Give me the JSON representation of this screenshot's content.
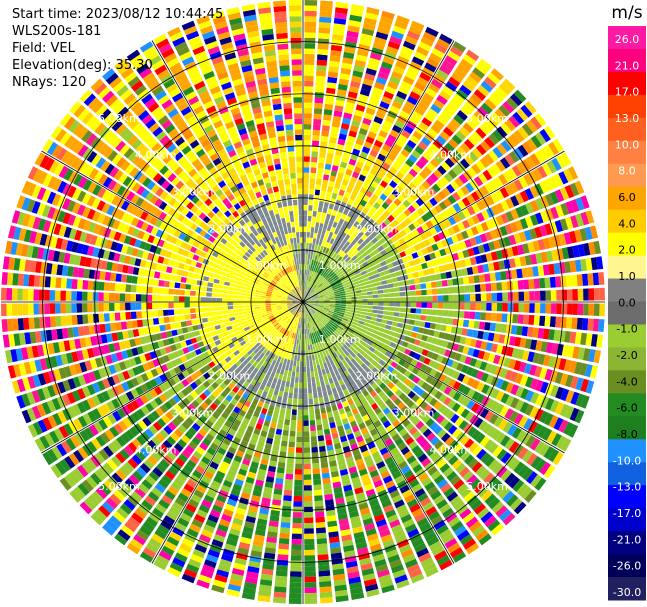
{
  "info": {
    "start_time": "Start time: 2023/08/12 10:44:45",
    "instrument": "WLS200s-181",
    "field": "Field: VEL",
    "elevation": "Elevation(deg): 35.30",
    "nrays": "NRays: 120"
  },
  "chart_data": {
    "type": "heatmap",
    "subtype": "polar-ppi",
    "field": "VEL",
    "n_rays": 120,
    "range_rings_km": [
      1.0,
      2.0,
      3.0,
      4.0,
      5.0
    ],
    "ring_labels": [
      "1.00km",
      "2.00km",
      "3.00km",
      "4.00km",
      "5.00km"
    ],
    "max_range_km": 5.8,
    "colorbar": {
      "unit": "m/s",
      "tick_labels": [
        "26.0",
        "21.0",
        "17.0",
        "13.0",
        "10.0",
        "8.0",
        "6.0",
        "4.0",
        "2.0",
        "1.0",
        "0.0",
        "-1.0",
        "-2.0",
        "-4.0",
        "-6.0",
        "-8.0",
        "-10.0",
        "-13.0",
        "-17.0",
        "-21.0",
        "-26.0",
        "-30.0"
      ],
      "colors": [
        "#ff1aa3",
        "#ff007f",
        "#ff0000",
        "#ff4000",
        "#ff6020",
        "#ff8040",
        "#ff9a50",
        "#ffa500",
        "#ffcc00",
        "#ffff00",
        "#fff68f",
        "#808080",
        "#6d6d6d",
        "#9acd32",
        "#8db534",
        "#6b8e23",
        "#228b22",
        "#1e7f1e",
        "#1e90ff",
        "#1060e0",
        "#0000ff",
        "#0000cd",
        "#000080",
        "#00005a",
        "#202060"
      ]
    }
  }
}
